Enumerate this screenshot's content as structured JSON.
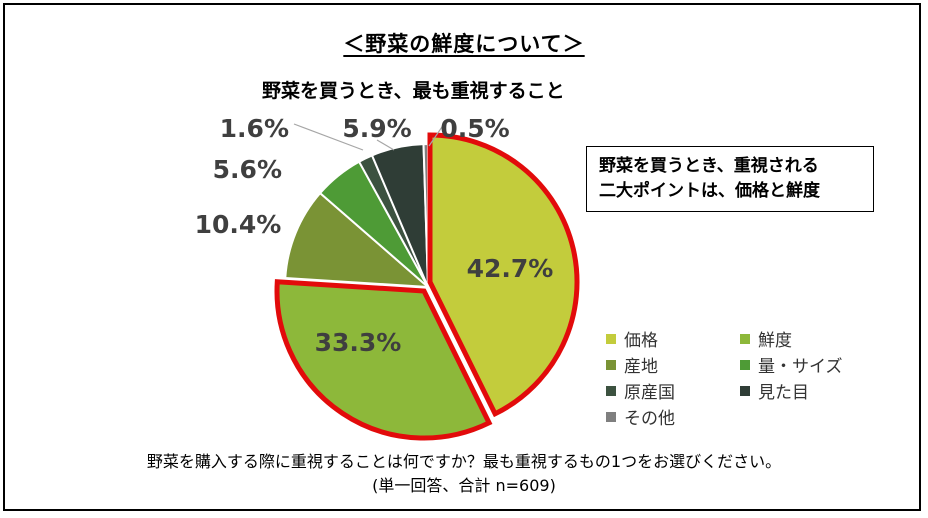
{
  "section_title": "＜野菜の鮮度について＞",
  "callout": {
    "line1": "野菜を買うとき、重視される",
    "line2": "二大ポイントは、価格と鮮度"
  },
  "note": {
    "question": "野菜を購入する際に重視することは何ですか？最も重視するもの1つをお選びください。",
    "base": "(単一回答、合計 n=609)"
  },
  "chart_data": {
    "type": "pie",
    "title": "野菜を買うとき、最も重視すること",
    "highlighted": [
      "価格",
      "鮮度"
    ],
    "highlight_color": "#e20b0b",
    "start": "12 o'clock, clockwise",
    "slices": [
      {
        "label": "価格",
        "value": 42.7,
        "display": "42.7%",
        "color": "#c3cc3c"
      },
      {
        "label": "鮮度",
        "value": 33.3,
        "display": "33.3%",
        "color": "#8db83a"
      },
      {
        "label": "産地",
        "value": 10.4,
        "display": "10.4%",
        "color": "#7a9335"
      },
      {
        "label": "量・サイズ",
        "value": 5.6,
        "display": "5.6%",
        "color": "#4e9b36"
      },
      {
        "label": "原産国",
        "value": 1.6,
        "display": "1.6%",
        "color": "#3c5240"
      },
      {
        "label": "見た目",
        "value": 5.9,
        "display": "5.9%",
        "color": "#2f3d36"
      },
      {
        "label": "その他",
        "value": 0.5,
        "display": "0.5%",
        "color": "#7f7f7f"
      }
    ],
    "legend_order": [
      "価格",
      "鮮度",
      "産地",
      "量・サイズ",
      "原産国",
      "見た目",
      "その他"
    ],
    "legend_position": "bottom-right"
  }
}
